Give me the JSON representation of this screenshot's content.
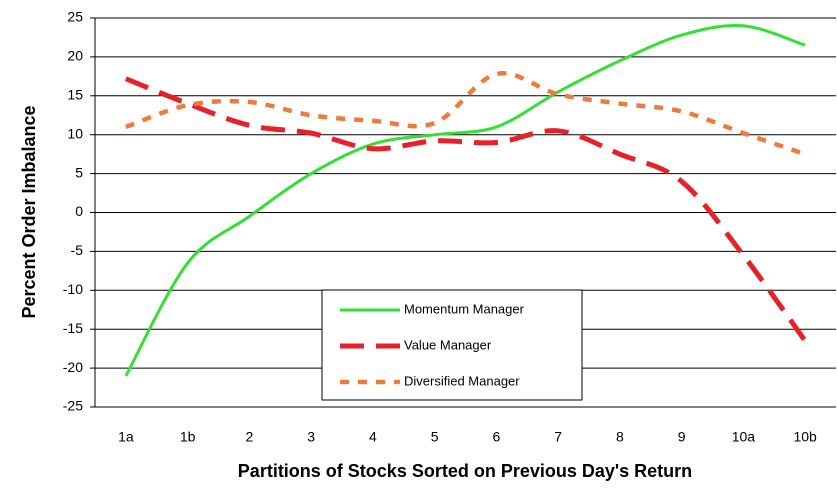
{
  "chart_data": {
    "type": "line",
    "x_label": "Partitions of Stocks Sorted on Previous Day's Return",
    "y_label": "Percent Order Imbalance",
    "categories": [
      "1a",
      "1b",
      "2",
      "3",
      "4",
      "5",
      "6",
      "7",
      "8",
      "9",
      "10a",
      "10b"
    ],
    "series": [
      {
        "name": "Momentum Manager",
        "color": "#33e033",
        "values": [
          -21,
          -6.5,
          -0.5,
          5,
          8.8,
          10,
          11,
          15.5,
          19.5,
          22.8,
          24,
          21.5
        ]
      },
      {
        "name": "Value Manager",
        "color": "#e8202a",
        "values": [
          17.2,
          14,
          11.2,
          10.2,
          8.2,
          9.2,
          9,
          10.5,
          7.5,
          4,
          -5.5,
          -16.5
        ]
      },
      {
        "name": "Diversified Manager",
        "color": "#f07a3c",
        "values": [
          11,
          13.8,
          14.2,
          12.5,
          11.8,
          11.5,
          17.8,
          15.2,
          14,
          13,
          10.2,
          7.5
        ]
      }
    ],
    "ylim": [
      -25,
      25
    ],
    "yticks": [
      -25,
      -20,
      -15,
      -10,
      -5,
      0,
      5,
      10,
      15,
      20,
      25
    ],
    "grid": true
  }
}
